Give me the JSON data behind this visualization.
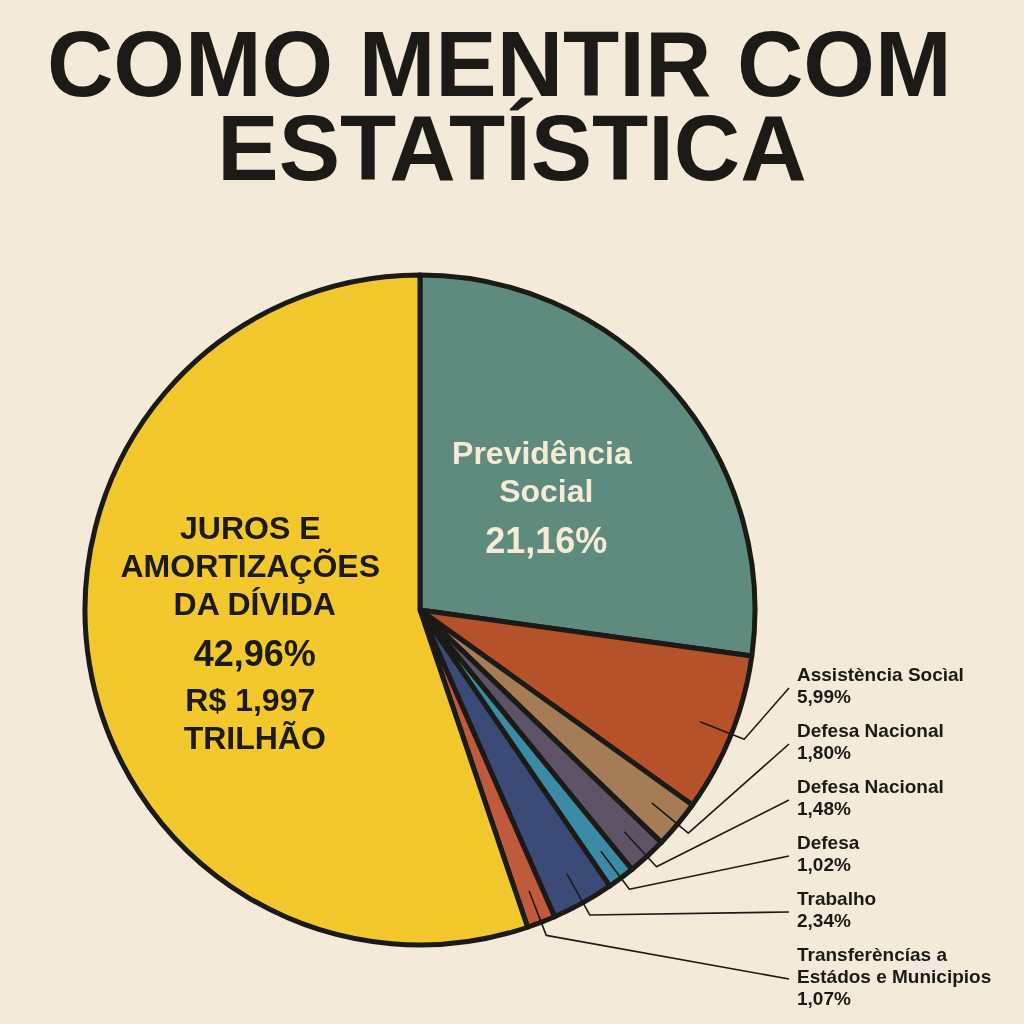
{
  "chart_data": {
    "type": "pie",
    "title": "COMO MENTIR COM ESTATÍSTICA",
    "categories": [
      "Previdência Social",
      "Assistència Socìal",
      "Defesa Nacional",
      "Defesa Nacional",
      "Defesa",
      "Trabalho",
      "Transferèncías a Estádos e Municipios",
      "JUROS E AMORTIZAÇÕES DA DÍVIDA"
    ],
    "values": [
      21.16,
      5.99,
      1.8,
      1.48,
      1.02,
      2.34,
      1.07,
      42.96
    ],
    "value_labels": [
      "21,16%",
      "5,99%",
      "1,80%",
      "1,48%",
      "1,02%",
      "2,34%",
      "1,07%",
      "42,96%"
    ],
    "colors": [
      "#5e8b7e",
      "#b6522a",
      "#a67c56",
      "#5d5266",
      "#3b8ba6",
      "#3c4a78",
      "#c05a3c",
      "#f2c82c"
    ],
    "annotations": [
      "R$ 1,997 TRILHÃO"
    ]
  }
}
